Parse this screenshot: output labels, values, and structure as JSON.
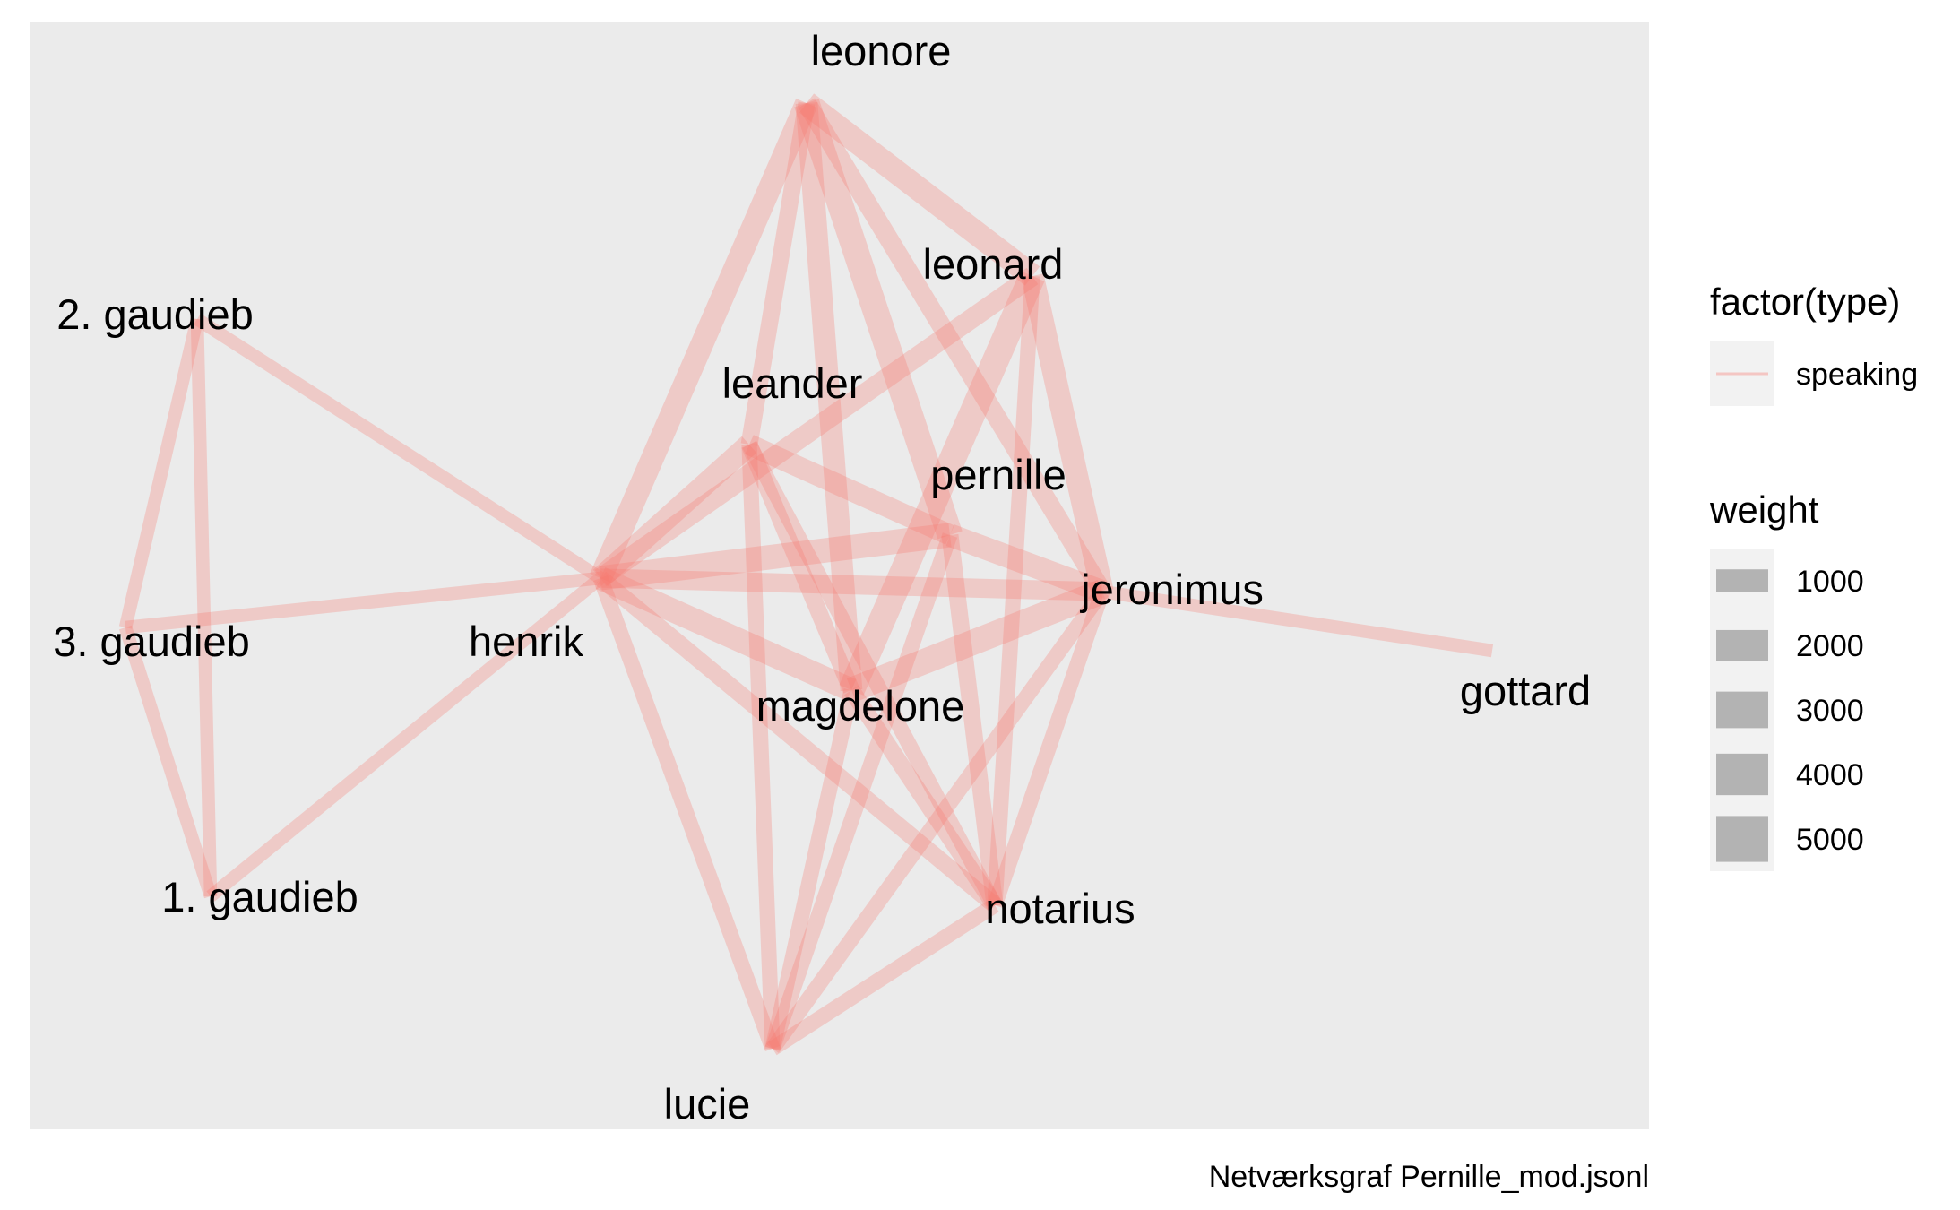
{
  "chart_data": {
    "type": "network",
    "nodes": [
      {
        "id": "leonore",
        "label": "leonore"
      },
      {
        "id": "leonard",
        "label": "leonard"
      },
      {
        "id": "2. gaudieb",
        "label": "2. gaudieb"
      },
      {
        "id": "leander",
        "label": "leander"
      },
      {
        "id": "pernille",
        "label": "pernille"
      },
      {
        "id": "jeronimus",
        "label": "jeronimus"
      },
      {
        "id": "3. gaudieb",
        "label": "3. gaudieb"
      },
      {
        "id": "henrik",
        "label": "henrik"
      },
      {
        "id": "gottard",
        "label": "gottard"
      },
      {
        "id": "magdelone",
        "label": "magdelone"
      },
      {
        "id": "1. gaudieb",
        "label": "1. gaudieb"
      },
      {
        "id": "notarius",
        "label": "notarius"
      },
      {
        "id": "lucie",
        "label": "lucie"
      }
    ],
    "edges": [
      {
        "source": "leonore",
        "target": "leonard",
        "weight": 3400,
        "type": "speaking"
      },
      {
        "source": "leonore",
        "target": "henrik",
        "weight": 3000,
        "type": "speaking"
      },
      {
        "source": "leonore",
        "target": "leander",
        "weight": 1500,
        "type": "speaking"
      },
      {
        "source": "leonore",
        "target": "magdelone",
        "weight": 2800,
        "type": "speaking"
      },
      {
        "source": "leonore",
        "target": "pernille",
        "weight": 4000,
        "type": "speaking"
      },
      {
        "source": "leonore",
        "target": "jeronimus",
        "weight": 2000,
        "type": "speaking"
      },
      {
        "source": "leonard",
        "target": "henrik",
        "weight": 2200,
        "type": "speaking"
      },
      {
        "source": "leonard",
        "target": "magdelone",
        "weight": 4200,
        "type": "speaking"
      },
      {
        "source": "leonard",
        "target": "jeronimus",
        "weight": 3000,
        "type": "speaking"
      },
      {
        "source": "leonard",
        "target": "notarius",
        "weight": 1200,
        "type": "speaking"
      },
      {
        "source": "leander",
        "target": "henrik",
        "weight": 2800,
        "type": "speaking"
      },
      {
        "source": "leander",
        "target": "pernille",
        "weight": 2500,
        "type": "speaking"
      },
      {
        "source": "leander",
        "target": "magdelone",
        "weight": 1500,
        "type": "speaking"
      },
      {
        "source": "leander",
        "target": "lucie",
        "weight": 1200,
        "type": "speaking"
      },
      {
        "source": "leander",
        "target": "notarius",
        "weight": 1200,
        "type": "speaking"
      },
      {
        "source": "pernille",
        "target": "henrik",
        "weight": 3500,
        "type": "speaking"
      },
      {
        "source": "pernille",
        "target": "jeronimus",
        "weight": 3000,
        "type": "speaking"
      },
      {
        "source": "pernille",
        "target": "lucie",
        "weight": 1200,
        "type": "speaking"
      },
      {
        "source": "pernille",
        "target": "notarius",
        "weight": 1500,
        "type": "speaking"
      },
      {
        "source": "henrik",
        "target": "magdelone",
        "weight": 3200,
        "type": "speaking"
      },
      {
        "source": "henrik",
        "target": "jeronimus",
        "weight": 2000,
        "type": "speaking"
      },
      {
        "source": "henrik",
        "target": "notarius",
        "weight": 1500,
        "type": "speaking"
      },
      {
        "source": "henrik",
        "target": "lucie",
        "weight": 1200,
        "type": "speaking"
      },
      {
        "source": "henrik",
        "target": "2. gaudieb",
        "weight": 800,
        "type": "speaking"
      },
      {
        "source": "henrik",
        "target": "3. gaudieb",
        "weight": 800,
        "type": "speaking"
      },
      {
        "source": "henrik",
        "target": "1. gaudieb",
        "weight": 800,
        "type": "speaking"
      },
      {
        "source": "magdelone",
        "target": "jeronimus",
        "weight": 3800,
        "type": "speaking"
      },
      {
        "source": "magdelone",
        "target": "lucie",
        "weight": 1200,
        "type": "speaking"
      },
      {
        "source": "magdelone",
        "target": "notarius",
        "weight": 1500,
        "type": "speaking"
      },
      {
        "source": "jeronimus",
        "target": "lucie",
        "weight": 1200,
        "type": "speaking"
      },
      {
        "source": "jeronimus",
        "target": "notarius",
        "weight": 1200,
        "type": "speaking"
      },
      {
        "source": "jeronimus",
        "target": "gottard",
        "weight": 800,
        "type": "speaking"
      },
      {
        "source": "lucie",
        "target": "notarius",
        "weight": 1200,
        "type": "speaking"
      },
      {
        "source": "2. gaudieb",
        "target": "3. gaudieb",
        "weight": 800,
        "type": "speaking"
      },
      {
        "source": "2. gaudieb",
        "target": "1. gaudieb",
        "weight": 800,
        "type": "speaking"
      },
      {
        "source": "3. gaudieb",
        "target": "1. gaudieb",
        "weight": 800,
        "type": "speaking"
      }
    ],
    "legend": {
      "colour_title": "factor(type)",
      "colour_entries": [
        {
          "label": "speaking",
          "color": "#F8766D"
        }
      ],
      "weight_title": "weight",
      "weight_breaks": [
        1000,
        2000,
        3000,
        4000,
        5000
      ],
      "placement": "right"
    },
    "caption": "Netværksgraf Pernille_mod.jsonl",
    "grid": false
  },
  "colors": {
    "panel_background": "#EBEBEB",
    "legend_key_background": "#F2F2F2",
    "edge": "#F8766D",
    "weight_key": "#B3B3B3"
  }
}
